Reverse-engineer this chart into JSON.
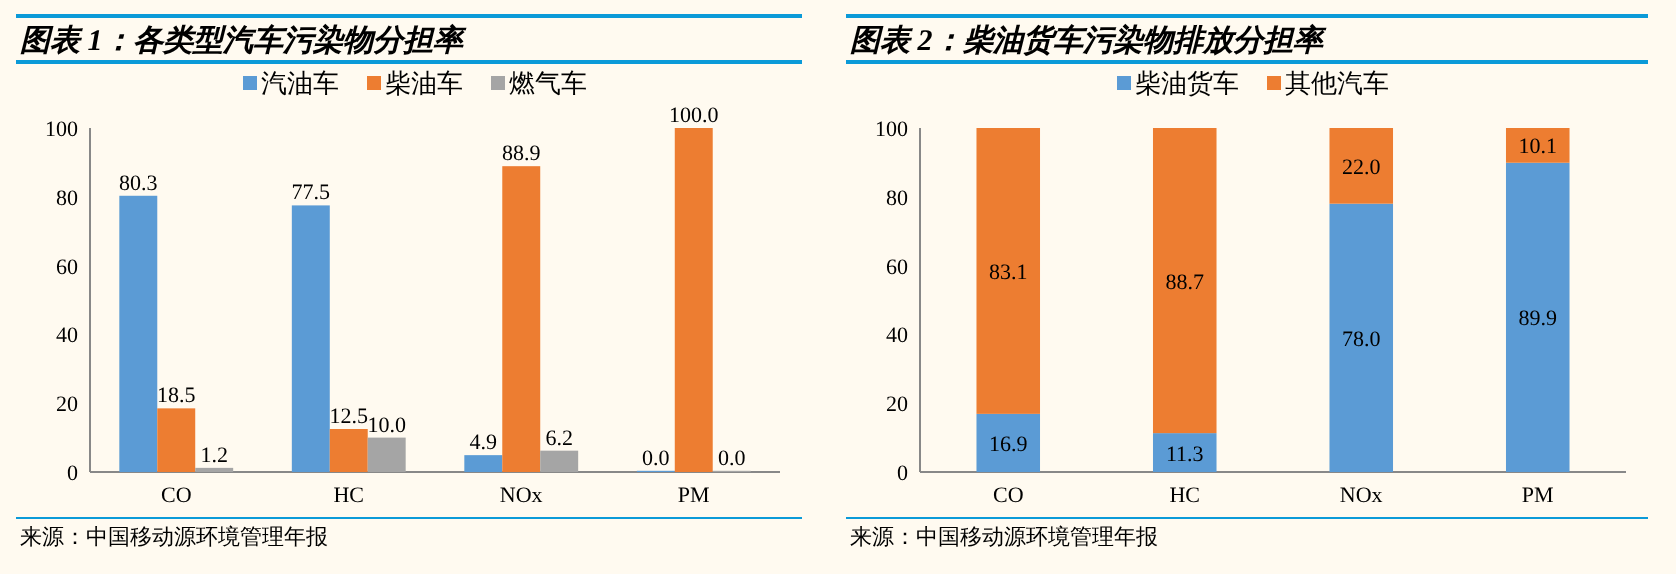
{
  "chart_data": [
    {
      "type": "bar",
      "title": "图表 1：各类型汽车污染物分担率",
      "categories": [
        "CO",
        "HC",
        "NOx",
        "PM"
      ],
      "series": [
        {
          "name": "汽油车",
          "color": "#5b9bd5",
          "values": [
            80.3,
            77.5,
            4.9,
            0.0
          ],
          "value_labels": [
            "80.3",
            "77.5",
            "4.9",
            "0.0"
          ]
        },
        {
          "name": "柴油车",
          "color": "#ed7d31",
          "values": [
            18.5,
            12.5,
            88.9,
            100.0
          ],
          "value_labels": [
            "18.5",
            "12.5",
            "88.9",
            "100.0"
          ]
        },
        {
          "name": "燃气车",
          "color": "#a5a5a5",
          "values": [
            1.2,
            10.0,
            6.2,
            0.0
          ],
          "value_labels": [
            "1.2",
            "10.0",
            "6.2",
            "0.0"
          ]
        }
      ],
      "ylim": [
        0,
        100
      ],
      "yticks": [
        0,
        20,
        40,
        60,
        80,
        100
      ],
      "legend": "top",
      "annotations": [
        "来源：中国移动源环境管理年报"
      ]
    },
    {
      "type": "bar",
      "title": "图表 2：柴油货车污染物排放分担率",
      "categories": [
        "CO",
        "HC",
        "NOx",
        "PM"
      ],
      "stacked": true,
      "series": [
        {
          "name": "柴油货车",
          "color": "#5b9bd5",
          "values": [
            16.9,
            11.3,
            78.0,
            89.9
          ],
          "value_labels": [
            "16.9",
            "11.3",
            "78.0",
            "89.9"
          ]
        },
        {
          "name": "其他汽车",
          "color": "#ed7d31",
          "values": [
            83.1,
            88.7,
            22.0,
            10.1
          ],
          "value_labels": [
            "83.1",
            "88.7",
            "22.0",
            "10.1"
          ]
        }
      ],
      "ylim": [
        0,
        100
      ],
      "yticks": [
        0,
        20,
        40,
        60,
        80,
        100
      ],
      "legend": "top",
      "annotations": [
        "来源：中国移动源环境管理年报"
      ]
    }
  ]
}
